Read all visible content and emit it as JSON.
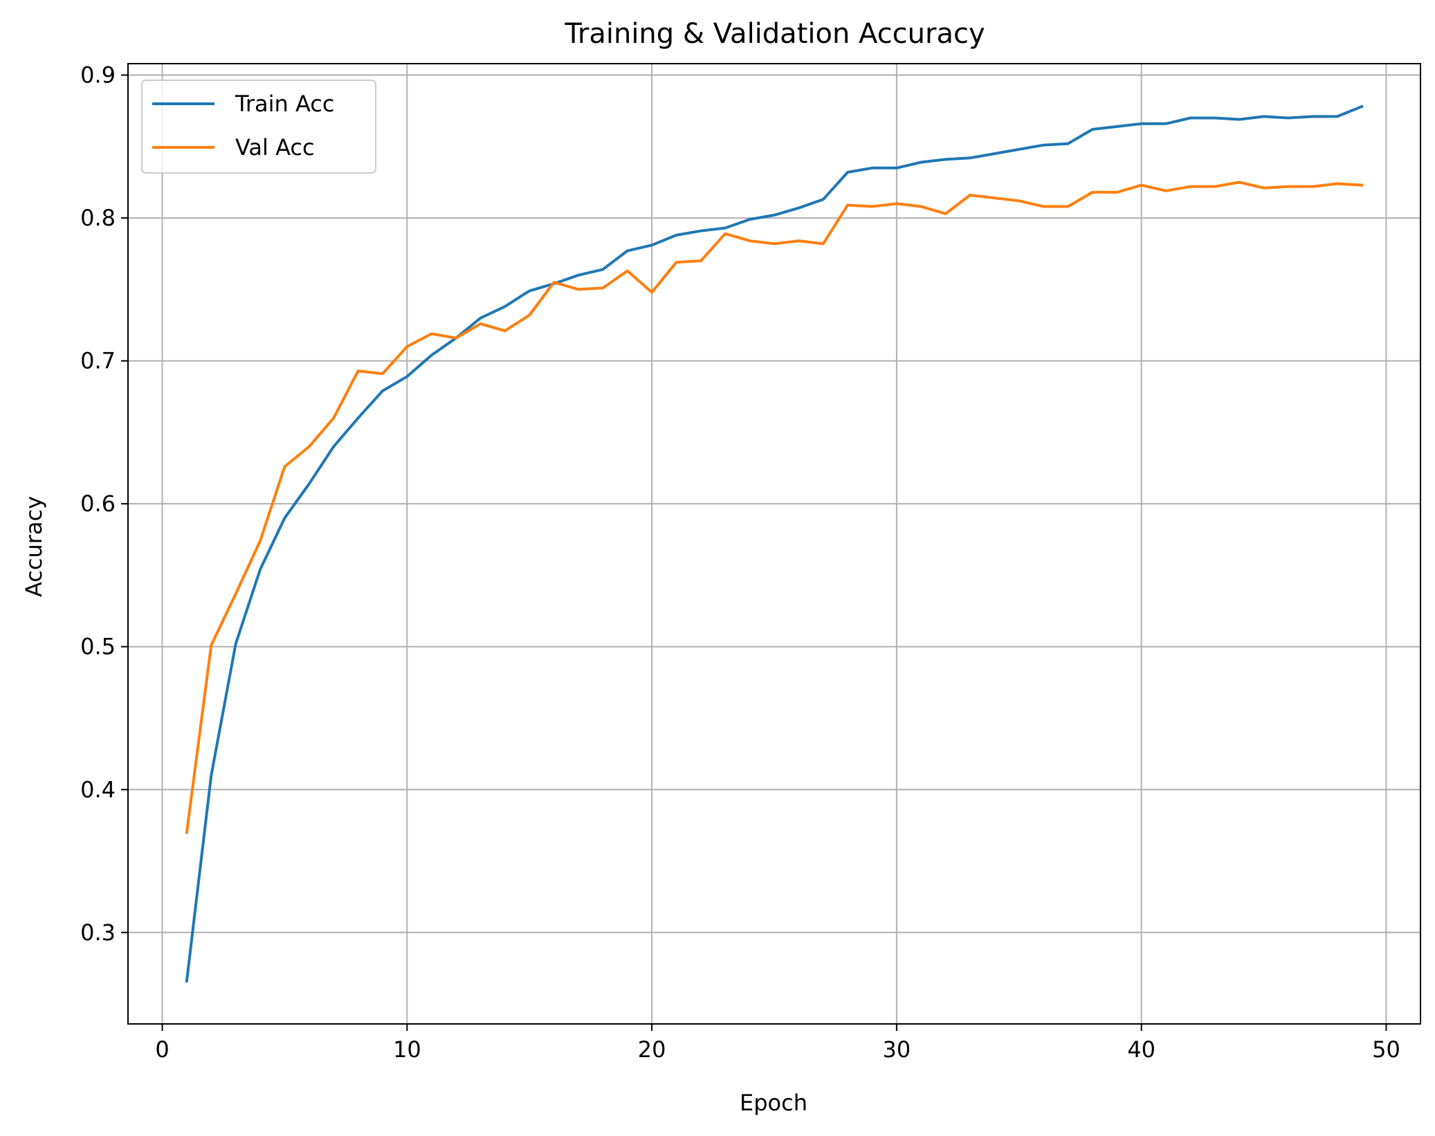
{
  "chart_data": {
    "type": "line",
    "title": "Training & Validation Accuracy",
    "xlabel": "Epoch",
    "ylabel": "Accuracy",
    "xlim": [
      -1.4,
      51.4
    ],
    "ylim": [
      0.236,
      0.908
    ],
    "xticks": [
      0,
      10,
      20,
      30,
      40,
      50
    ],
    "yticks": [
      0.3,
      0.4,
      0.5,
      0.6,
      0.7,
      0.8,
      0.9
    ],
    "xtick_labels": [
      "0",
      "10",
      "20",
      "30",
      "40",
      "50"
    ],
    "ytick_labels": [
      "0.3",
      "0.4",
      "0.5",
      "0.6",
      "0.7",
      "0.8",
      "0.9"
    ],
    "grid": true,
    "legend_position": "top-left",
    "x": [
      1,
      2,
      3,
      4,
      5,
      6,
      7,
      8,
      9,
      10,
      11,
      12,
      13,
      14,
      15,
      16,
      17,
      18,
      19,
      20,
      21,
      22,
      23,
      24,
      25,
      26,
      27,
      28,
      29,
      30,
      31,
      32,
      33,
      34,
      35,
      36,
      37,
      38,
      39,
      40,
      41,
      42,
      43,
      44,
      45,
      46,
      47,
      48,
      49
    ],
    "series": [
      {
        "name": "Train Acc",
        "color": "#1f77b4",
        "values": [
          0.266,
          0.41,
          0.502,
          0.554,
          0.59,
          0.614,
          0.64,
          0.66,
          0.679,
          0.689,
          0.704,
          0.716,
          0.73,
          0.738,
          0.749,
          0.754,
          0.76,
          0.764,
          0.777,
          0.781,
          0.788,
          0.791,
          0.793,
          0.799,
          0.802,
          0.807,
          0.813,
          0.832,
          0.835,
          0.835,
          0.839,
          0.841,
          0.842,
          0.845,
          0.848,
          0.851,
          0.852,
          0.862,
          0.864,
          0.866,
          0.866,
          0.87,
          0.87,
          0.869,
          0.871,
          0.87,
          0.871,
          0.871,
          0.878
        ]
      },
      {
        "name": "Val Acc",
        "color": "#ff7f0e",
        "values": [
          0.37,
          0.501,
          0.537,
          0.574,
          0.626,
          0.64,
          0.66,
          0.693,
          0.691,
          0.71,
          0.719,
          0.716,
          0.726,
          0.721,
          0.732,
          0.755,
          0.75,
          0.751,
          0.763,
          0.748,
          0.769,
          0.77,
          0.789,
          0.784,
          0.782,
          0.784,
          0.782,
          0.809,
          0.808,
          0.81,
          0.808,
          0.803,
          0.816,
          0.814,
          0.812,
          0.808,
          0.808,
          0.818,
          0.818,
          0.823,
          0.819,
          0.822,
          0.822,
          0.825,
          0.821,
          0.822,
          0.822,
          0.824,
          0.823
        ]
      }
    ]
  }
}
